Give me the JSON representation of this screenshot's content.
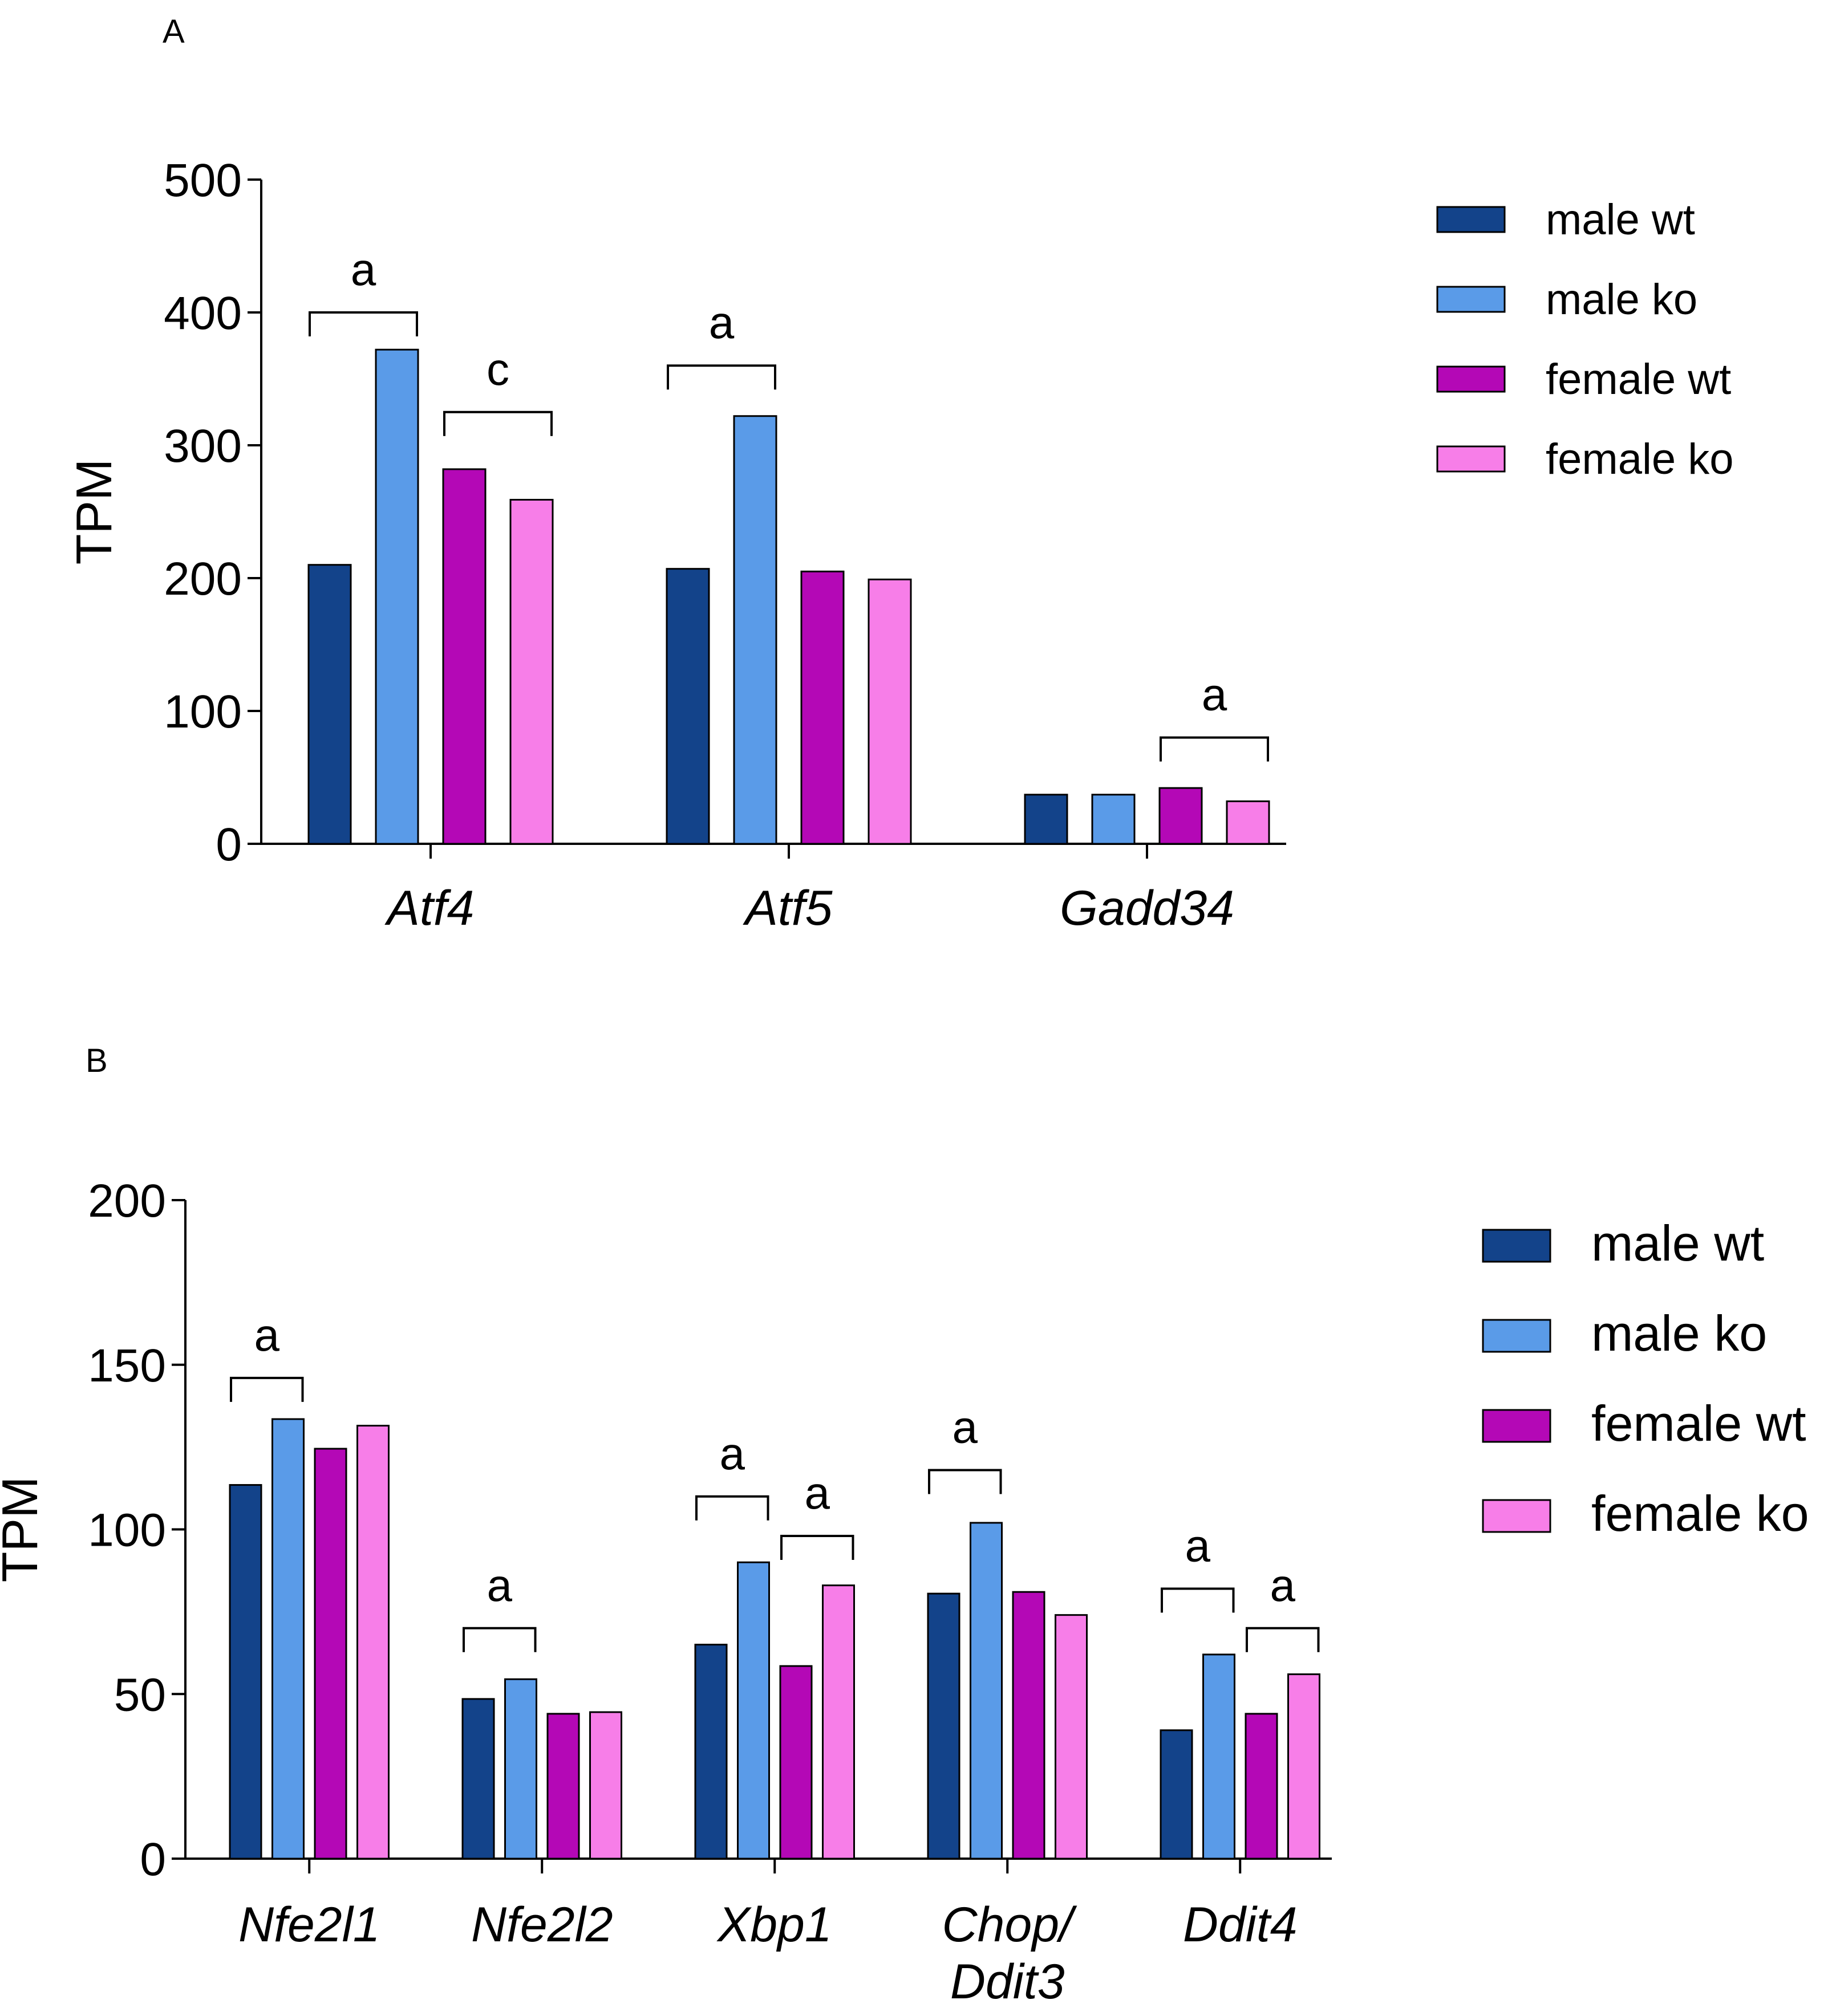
{
  "chart_data": [
    {
      "panel": "A",
      "type": "bar",
      "ylabel": "TPM",
      "ylim": [
        0,
        500
      ],
      "yticks": [
        0,
        100,
        200,
        300,
        400,
        500
      ],
      "categories": [
        "Atf4",
        "Atf5",
        "Gadd34"
      ],
      "series": [
        {
          "name": "male wt",
          "color": "#13438a",
          "values": [
            210,
            207,
            37
          ]
        },
        {
          "name": "male ko",
          "color": "#5a9be8",
          "values": [
            372,
            322,
            37
          ]
        },
        {
          "name": "female wt",
          "color": "#b408b6",
          "values": [
            282,
            205,
            42
          ]
        },
        {
          "name": "female ko",
          "color": "#f77ee8",
          "values": [
            259,
            199,
            32
          ]
        }
      ],
      "legend_position": "right",
      "significance": [
        {
          "category": 0,
          "from_series": 0,
          "to_series": 1,
          "label": "a",
          "bracket_value": 400
        },
        {
          "category": 0,
          "from_series": 2,
          "to_series": 3,
          "label": "c",
          "bracket_value": 325
        },
        {
          "category": 1,
          "from_series": 0,
          "to_series": 1,
          "label": "a",
          "bracket_value": 360
        },
        {
          "category": 2,
          "from_series": 2,
          "to_series": 3,
          "label": "a",
          "bracket_value": 80
        }
      ]
    },
    {
      "panel": "B",
      "type": "bar",
      "ylabel": "TPM",
      "ylim": [
        0,
        200
      ],
      "yticks": [
        0,
        50,
        100,
        150,
        200
      ],
      "categories": [
        [
          "Nfe2l1"
        ],
        [
          "Nfe2l2"
        ],
        [
          "Xbp1"
        ],
        [
          "Chop/",
          "Ddit3"
        ],
        [
          "Ddit4"
        ]
      ],
      "series": [
        {
          "name": "male wt",
          "color": "#13438a",
          "values": [
            113.5,
            48.5,
            65,
            80.5,
            39
          ]
        },
        {
          "name": "male ko",
          "color": "#5a9be8",
          "values": [
            133.5,
            54.5,
            90,
            102,
            62
          ]
        },
        {
          "name": "female wt",
          "color": "#b408b6",
          "values": [
            124.5,
            44,
            58.5,
            81,
            44
          ]
        },
        {
          "name": "female ko",
          "color": "#f77ee8",
          "values": [
            131.5,
            44.5,
            83,
            74,
            56
          ]
        }
      ],
      "legend_position": "right",
      "significance": [
        {
          "category": 0,
          "from_series": 0,
          "to_series": 1,
          "label": "a",
          "bracket_value": 146
        },
        {
          "category": 1,
          "from_series": 0,
          "to_series": 1,
          "label": "a",
          "bracket_value": 70
        },
        {
          "category": 2,
          "from_series": 0,
          "to_series": 1,
          "label": "a",
          "bracket_value": 110
        },
        {
          "category": 2,
          "from_series": 2,
          "to_series": 3,
          "label": "a",
          "bracket_value": 98
        },
        {
          "category": 3,
          "from_series": 0,
          "to_series": 1,
          "label": "a",
          "bracket_value": 118
        },
        {
          "category": 4,
          "from_series": 0,
          "to_series": 1,
          "label": "a",
          "bracket_value": 82
        },
        {
          "category": 4,
          "from_series": 2,
          "to_series": 3,
          "label": "a",
          "bracket_value": 70
        }
      ]
    }
  ]
}
